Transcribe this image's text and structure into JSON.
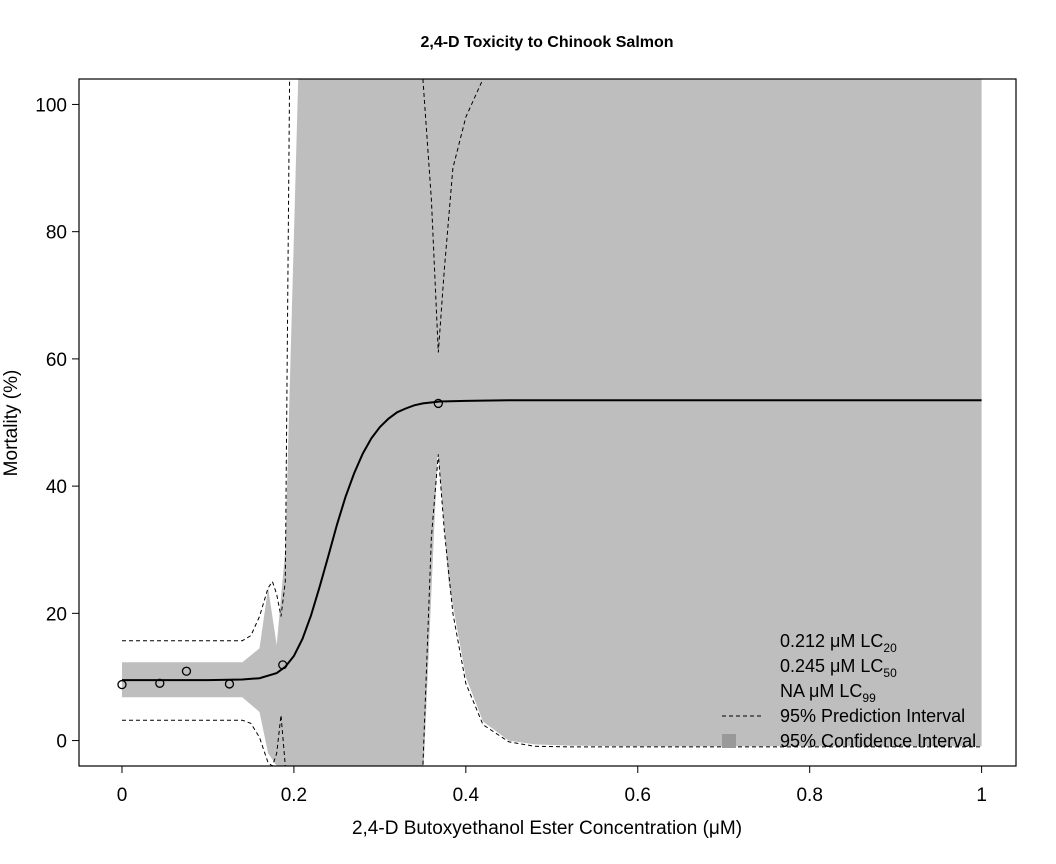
{
  "chart_data": {
    "type": "line",
    "title": "2,4-D Toxicity to Chinook Salmon",
    "xlabel": "2,4-D Butoxyethanol Ester Concentration (μM)",
    "ylabel": "Mortality (%)",
    "xlim": [
      -0.05,
      1.04
    ],
    "ylim": [
      -4,
      104
    ],
    "xticks": [
      0,
      0.2,
      0.4,
      0.6,
      0.8,
      1
    ],
    "xtick_labels": [
      "0",
      "0.2",
      "0.4",
      "0.6",
      "0.8",
      "1"
    ],
    "yticks": [
      0,
      20,
      40,
      60,
      80,
      100
    ],
    "ytick_labels": [
      "0",
      "20",
      "40",
      "60",
      "80",
      "100"
    ],
    "grid": false,
    "legend_position": "bottom-right",
    "points": {
      "x": [
        0,
        0.044,
        0.075,
        0.125,
        0.187,
        0.368
      ],
      "y": [
        8.8,
        9.0,
        10.9,
        8.9,
        11.9,
        53.0
      ]
    },
    "fit_curve": {
      "x": [
        0,
        0.05,
        0.1,
        0.14,
        0.16,
        0.18,
        0.19,
        0.2,
        0.21,
        0.22,
        0.23,
        0.24,
        0.25,
        0.26,
        0.27,
        0.28,
        0.29,
        0.3,
        0.31,
        0.32,
        0.33,
        0.34,
        0.35,
        0.37,
        0.4,
        0.45,
        0.5,
        1.0
      ],
      "y": [
        9.5,
        9.5,
        9.5,
        9.6,
        9.8,
        10.6,
        11.6,
        13.3,
        16.0,
        19.7,
        24.2,
        29.0,
        33.9,
        38.3,
        42.0,
        45.1,
        47.5,
        49.3,
        50.6,
        51.6,
        52.2,
        52.7,
        53.0,
        53.3,
        53.4,
        53.5,
        53.5,
        53.5
      ]
    },
    "confidence_band": {
      "x": [
        0,
        0.14,
        0.16,
        0.17,
        0.18,
        0.19,
        0.205,
        0.35,
        0.351,
        0.367,
        0.368,
        0.38,
        0.4,
        0.42,
        0.45,
        0.48,
        0.52,
        0.6,
        0.7,
        1.0
      ],
      "lower": [
        6.8,
        6.8,
        4.5,
        -2,
        -4,
        -4,
        -4,
        -4,
        -4,
        45,
        45,
        25,
        10,
        3,
        0,
        -0.6,
        -0.8,
        -0.9,
        -0.9,
        -0.9
      ],
      "upper": [
        12.3,
        12.3,
        14.5,
        24,
        15,
        30,
        104,
        104,
        104,
        104,
        104,
        104,
        104,
        104,
        104,
        104,
        104,
        104,
        104,
        104
      ]
    },
    "prediction_interval": {
      "x": [
        0,
        0.14,
        0.15,
        0.16,
        0.17,
        0.175,
        0.18,
        0.185,
        0.19,
        0.195,
        0.205,
        0.35,
        0.36,
        0.368,
        0.375,
        0.385,
        0.4,
        0.42,
        0.45,
        0.48,
        0.52,
        0.6,
        0.7,
        1.0
      ],
      "lower": [
        3.2,
        3.2,
        2.7,
        0.5,
        -3.5,
        -4,
        -2,
        4,
        -4,
        -4,
        -4,
        -4,
        32,
        45,
        33,
        20,
        9,
        2.5,
        -0.2,
        -0.9,
        -1.0,
        -1.0,
        -1.0,
        -1.0
      ],
      "upper": [
        15.7,
        15.7,
        16.5,
        19.5,
        24,
        25,
        23,
        19.5,
        25,
        104,
        104,
        104,
        85,
        61,
        74,
        90,
        98,
        104,
        104,
        104,
        104,
        104,
        104,
        104
      ]
    },
    "legend": [
      {
        "value": "0.212 μM LC",
        "sub": "20"
      },
      {
        "value": "0.245 μM LC",
        "sub": "50"
      },
      {
        "value": "NA μM LC",
        "sub": "99"
      },
      {
        "value": "95% Prediction Interval",
        "symbol": "dashed-line"
      },
      {
        "value": "95% Confidence Interval",
        "symbol": "grey-square"
      }
    ],
    "colors": {
      "band": "#bebebe",
      "legend_square": "#999999",
      "line": "#000000"
    }
  }
}
